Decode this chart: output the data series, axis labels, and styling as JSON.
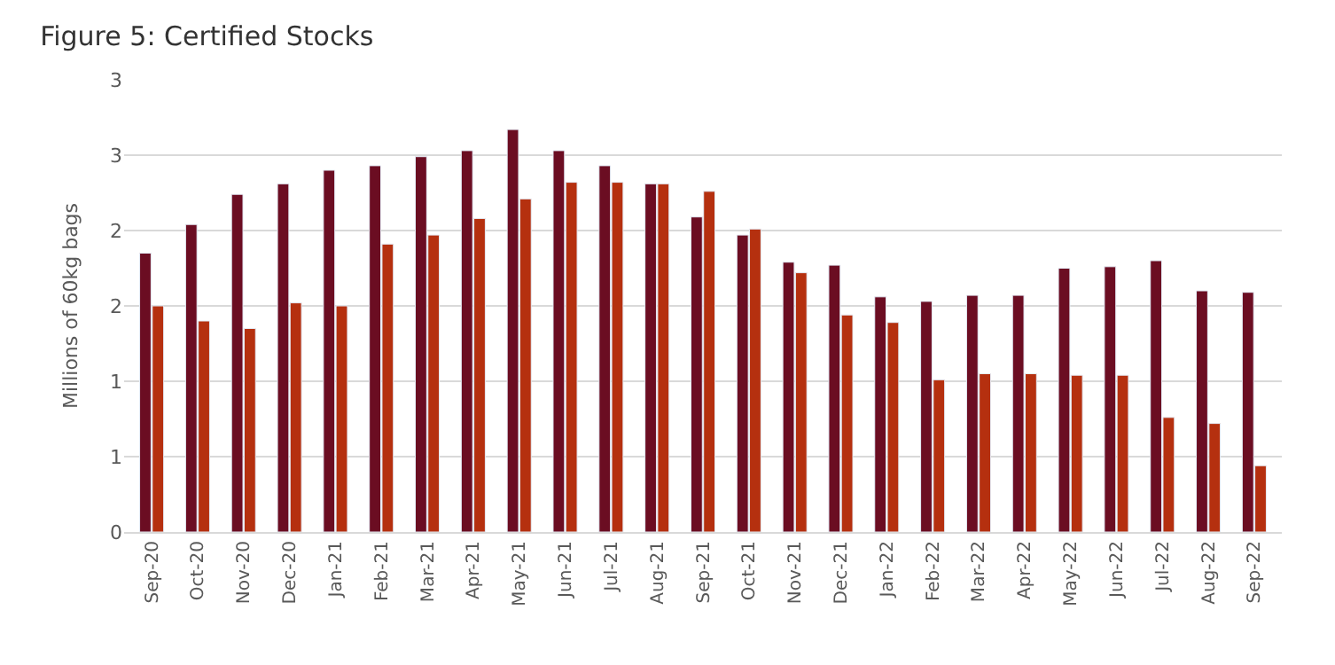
{
  "chart_data": {
    "type": "bar",
    "title": "Figure 5: Certified Stocks",
    "ylabel": "Millions of 60kg bags",
    "categories": [
      "Sep-20",
      "Oct-20",
      "Nov-20",
      "Dec-20",
      "Jan-21",
      "Feb-21",
      "Mar-21",
      "Apr-21",
      "May-21",
      "Jun-21",
      "Jul-21",
      "Aug-21",
      "Sep-21",
      "Oct-21",
      "Nov-21",
      "Dec-21",
      "Jan-22",
      "Feb-22",
      "Mar-22",
      "Apr-22",
      "May-22",
      "Jun-22",
      "Jul-22",
      "Aug-22",
      "Sep-22"
    ],
    "series": [
      {
        "color": "#6b0d22",
        "values": [
          1.85,
          2.04,
          2.24,
          2.31,
          2.4,
          2.43,
          2.49,
          2.53,
          2.67,
          2.53,
          2.43,
          2.31,
          2.09,
          1.97,
          1.79,
          1.77,
          1.56,
          1.53,
          1.57,
          1.57,
          1.75,
          1.76,
          1.8,
          1.6,
          1.59
        ]
      },
      {
        "color": "#b5300f",
        "values": [
          1.5,
          1.4,
          1.35,
          1.52,
          1.5,
          1.91,
          1.97,
          2.08,
          2.21,
          2.32,
          2.32,
          2.31,
          2.26,
          2.01,
          1.72,
          1.44,
          1.39,
          1.01,
          1.05,
          1.05,
          1.04,
          1.04,
          0.76,
          0.72,
          0.44
        ]
      }
    ],
    "ylim": [
      0,
      3
    ],
    "yticks": [
      0,
      {
        "value": 0.5,
        "label": "1"
      },
      1,
      {
        "value": 1.5,
        "label": "2"
      },
      2,
      {
        "value": 2.5,
        "label": "3"
      },
      3
    ],
    "grid": "y"
  }
}
